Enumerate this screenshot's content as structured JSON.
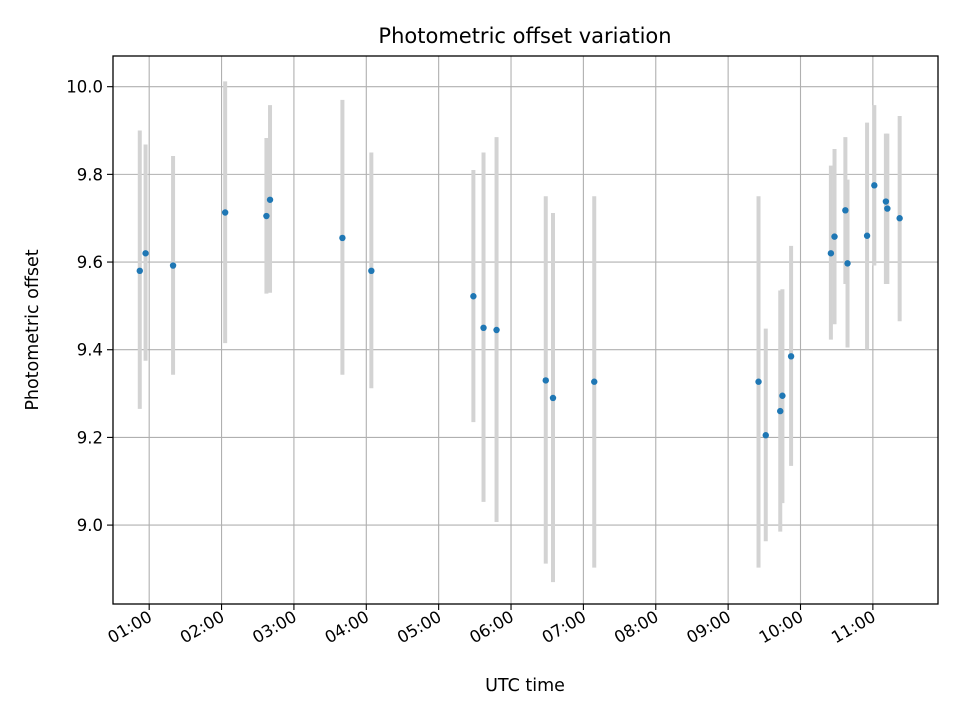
{
  "chart_data": {
    "type": "scatter",
    "title": "Photometric offset variation",
    "xlabel": "UTC time",
    "ylabel": "Photometric offset",
    "x_axis": "time",
    "x_tick_labels": [
      "01:00",
      "02:00",
      "03:00",
      "04:00",
      "05:00",
      "06:00",
      "07:00",
      "08:00",
      "09:00",
      "10:00",
      "11:00"
    ],
    "x_tick_hours": [
      1,
      2,
      3,
      4,
      5,
      6,
      7,
      8,
      9,
      10,
      11
    ],
    "xlim_hours": [
      0.5,
      11.9
    ],
    "y_ticks": [
      9.0,
      9.2,
      9.4,
      9.6,
      9.8,
      10.0
    ],
    "y_tick_labels": [
      "9.0",
      "9.2",
      "9.4",
      "9.6",
      "9.8",
      "10.0"
    ],
    "ylim": [
      8.82,
      10.07
    ],
    "grid": true,
    "colors": {
      "points": "#1f77b4",
      "errorbars": "#d3d3d3",
      "grid": "#b0b0b0",
      "frame": "#000000"
    },
    "points": [
      {
        "t_hours": 0.87,
        "y": 9.58,
        "ylow": 9.265,
        "yhigh": 9.9
      },
      {
        "t_hours": 0.95,
        "y": 9.62,
        "ylow": 9.375,
        "yhigh": 9.868
      },
      {
        "t_hours": 1.33,
        "y": 9.592,
        "ylow": 9.343,
        "yhigh": 9.842
      },
      {
        "t_hours": 2.05,
        "y": 9.713,
        "ylow": 9.415,
        "yhigh": 10.012
      },
      {
        "t_hours": 2.62,
        "y": 9.705,
        "ylow": 9.528,
        "yhigh": 9.883
      },
      {
        "t_hours": 2.67,
        "y": 9.742,
        "ylow": 9.53,
        "yhigh": 9.958
      },
      {
        "t_hours": 3.67,
        "y": 9.655,
        "ylow": 9.343,
        "yhigh": 9.97
      },
      {
        "t_hours": 4.07,
        "y": 9.58,
        "ylow": 9.312,
        "yhigh": 9.85
      },
      {
        "t_hours": 5.48,
        "y": 9.522,
        "ylow": 9.235,
        "yhigh": 9.81
      },
      {
        "t_hours": 5.62,
        "y": 9.45,
        "ylow": 9.053,
        "yhigh": 9.85
      },
      {
        "t_hours": 5.8,
        "y": 9.445,
        "ylow": 9.007,
        "yhigh": 9.885
      },
      {
        "t_hours": 6.48,
        "y": 9.33,
        "ylow": 8.912,
        "yhigh": 9.75
      },
      {
        "t_hours": 6.58,
        "y": 9.29,
        "ylow": 8.87,
        "yhigh": 9.712
      },
      {
        "t_hours": 7.15,
        "y": 9.327,
        "ylow": 8.903,
        "yhigh": 9.75
      },
      {
        "t_hours": 9.42,
        "y": 9.327,
        "ylow": 8.903,
        "yhigh": 9.75
      },
      {
        "t_hours": 9.52,
        "y": 9.205,
        "ylow": 8.963,
        "yhigh": 9.448
      },
      {
        "t_hours": 9.72,
        "y": 9.26,
        "ylow": 8.985,
        "yhigh": 9.535
      },
      {
        "t_hours": 9.75,
        "y": 9.295,
        "ylow": 9.05,
        "yhigh": 9.538
      },
      {
        "t_hours": 9.87,
        "y": 9.385,
        "ylow": 9.135,
        "yhigh": 9.637
      },
      {
        "t_hours": 10.42,
        "y": 9.62,
        "ylow": 9.423,
        "yhigh": 9.82
      },
      {
        "t_hours": 10.47,
        "y": 9.658,
        "ylow": 9.458,
        "yhigh": 9.858
      },
      {
        "t_hours": 10.62,
        "y": 9.718,
        "ylow": 9.55,
        "yhigh": 9.885
      },
      {
        "t_hours": 10.65,
        "y": 9.597,
        "ylow": 9.405,
        "yhigh": 9.788
      },
      {
        "t_hours": 10.92,
        "y": 9.66,
        "ylow": 9.4,
        "yhigh": 9.918
      },
      {
        "t_hours": 11.02,
        "y": 9.775,
        "ylow": 9.592,
        "yhigh": 9.958
      },
      {
        "t_hours": 11.18,
        "y": 9.738,
        "ylow": 9.55,
        "yhigh": 9.893
      },
      {
        "t_hours": 11.2,
        "y": 9.722,
        "ylow": 9.55,
        "yhigh": 9.893
      },
      {
        "t_hours": 11.37,
        "y": 9.7,
        "ylow": 9.465,
        "yhigh": 9.933
      }
    ]
  }
}
